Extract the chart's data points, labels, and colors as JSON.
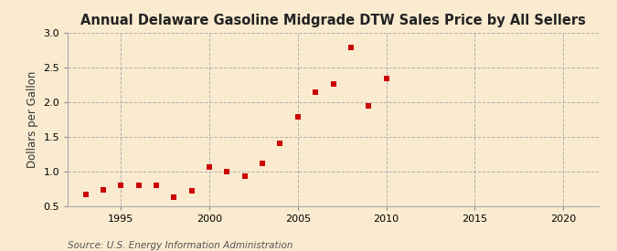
{
  "title": "Annual Delaware Gasoline Midgrade DTW Sales Price by All Sellers",
  "ylabel": "Dollars per Gallon",
  "source": "Source: U.S. Energy Information Administration",
  "years": [
    1993,
    1994,
    1995,
    1996,
    1997,
    1998,
    1999,
    2000,
    2001,
    2002,
    2003,
    2004,
    2005,
    2006,
    2007,
    2008,
    2009,
    2010
  ],
  "values": [
    0.67,
    0.73,
    0.8,
    0.8,
    0.8,
    0.62,
    0.72,
    1.06,
    1.0,
    0.93,
    1.11,
    1.4,
    1.79,
    2.14,
    2.26,
    2.78,
    1.94,
    2.34
  ],
  "point_color": "#cc0000",
  "background_color": "#faebd0",
  "grid_color": "#aaaaaa",
  "xlim": [
    1992,
    2022
  ],
  "ylim": [
    0.5,
    3.0
  ],
  "xticks": [
    1995,
    2000,
    2005,
    2010,
    2015,
    2020
  ],
  "yticks": [
    0.5,
    1.0,
    1.5,
    2.0,
    2.5,
    3.0
  ],
  "title_fontsize": 10.5,
  "label_fontsize": 8.5,
  "tick_fontsize": 8,
  "source_fontsize": 7.5
}
